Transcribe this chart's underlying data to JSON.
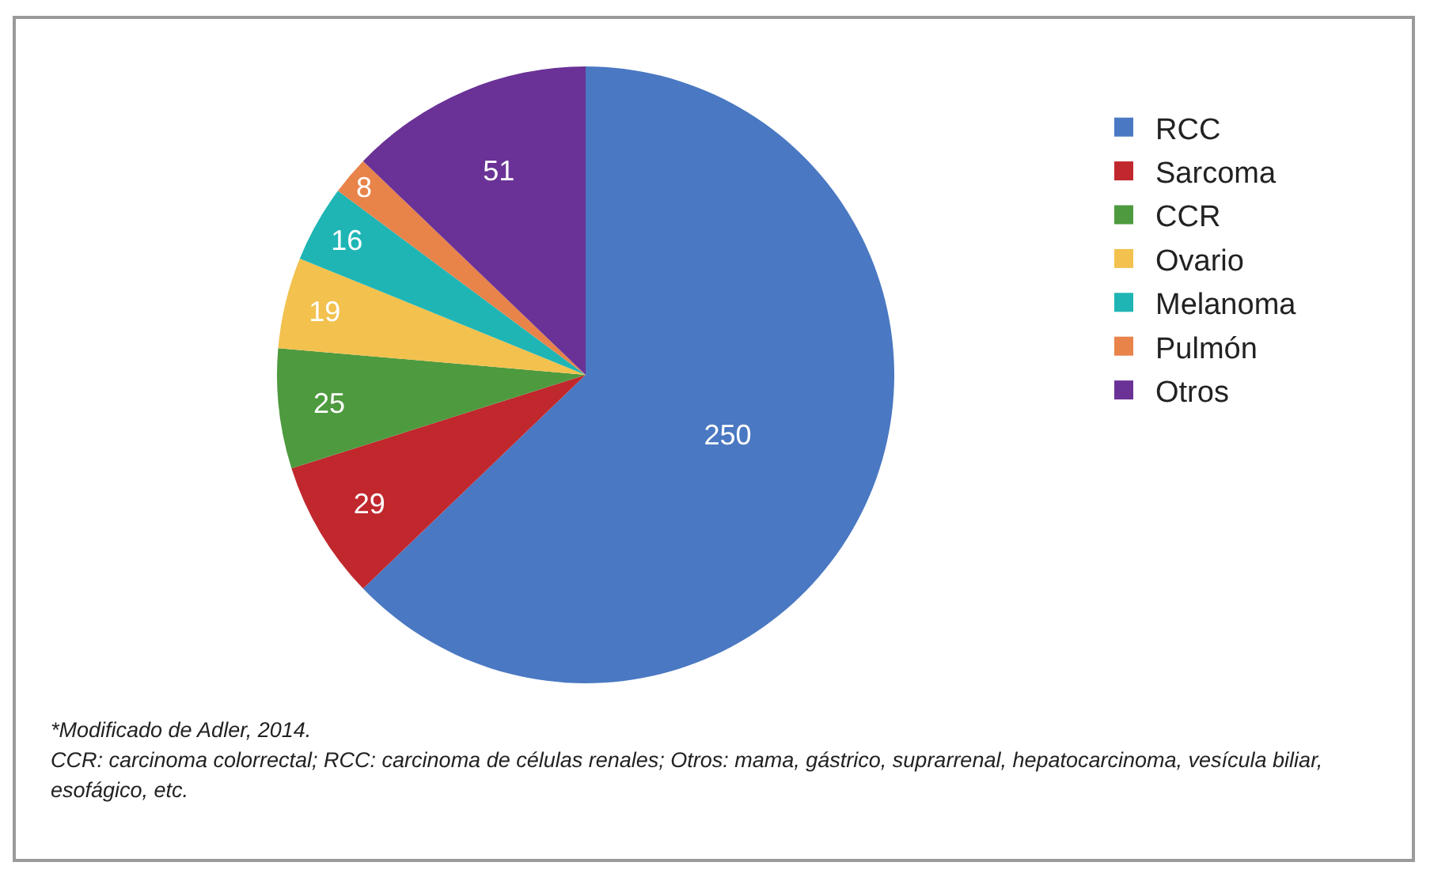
{
  "chart_data": {
    "type": "pie",
    "categories": [
      "RCC",
      "Sarcoma",
      "CCR",
      "Ovario",
      "Melanoma",
      "Pulmón",
      "Otros"
    ],
    "values": [
      250,
      29,
      25,
      19,
      16,
      8,
      51
    ],
    "colors": [
      "#4a78c2",
      "#c0282d",
      "#4e9a3f",
      "#f2c14e",
      "#1fb5b5",
      "#e8834a",
      "#6a3296"
    ],
    "data_labels": true,
    "legend": "right",
    "annotations": [
      "*Modificado de Adler, 2014.",
      "CCR: carcinoma colorrectal; RCC: carcinoma de células renales; Otros: mama, gástrico, suprarrenal, hepatocarcinoma, vesícula biliar, esofágico, etc."
    ]
  }
}
